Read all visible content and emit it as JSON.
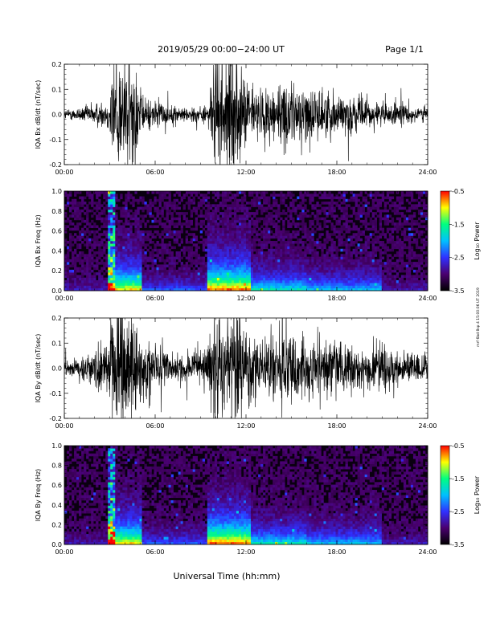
{
  "header": {
    "title": "2019/05/29  00:00−24:00 UT",
    "page_label": "Page 1/1"
  },
  "footer": {
    "xlabel": "Universal Time (hh:mm)",
    "side_note": "mrf 6bd 8sp 4 15:00:06 UT 2019"
  },
  "colors": {
    "trace": "#000000",
    "colormap": [
      "#000000",
      "#4a0070",
      "#3030ff",
      "#00c0ff",
      "#00ff80",
      "#ffff00",
      "#ff0000"
    ]
  },
  "chart_data": [
    {
      "type": "line",
      "name": "bx_waveform",
      "ylabel": "IQA Bx dB/dt (nT/sec)",
      "ylim": [
        -0.2,
        0.2
      ],
      "yticks": [
        "0.2",
        "0.1",
        "0.0",
        "-0.1",
        "-0.2"
      ],
      "xlim": [
        0,
        24
      ],
      "xticks": [
        "00:00",
        "06:00",
        "12:00",
        "18:00",
        "24:00"
      ],
      "envelope": {
        "x": [
          0,
          1,
          2,
          2.9,
          3.1,
          4.0,
          4.6,
          5.2,
          6.0,
          7.0,
          8.0,
          9.5,
          10.0,
          11.0,
          12.0,
          13.0,
          14.0,
          15.0,
          16.0,
          17.0,
          18.0,
          19.0,
          20.0,
          21.0,
          22.0,
          23.0,
          24.0
        ],
        "amp": [
          0.02,
          0.03,
          0.05,
          0.06,
          0.25,
          0.25,
          0.25,
          0.07,
          0.06,
          0.04,
          0.03,
          0.04,
          0.25,
          0.25,
          0.15,
          0.1,
          0.14,
          0.13,
          0.12,
          0.1,
          0.09,
          0.08,
          0.06,
          0.05,
          0.05,
          0.04,
          0.03
        ]
      }
    },
    {
      "type": "heatmap",
      "name": "bx_spectrogram",
      "ylabel": "IQA Bx Freq (Hz)",
      "ylim": [
        0,
        1.0
      ],
      "yticks": [
        "1.0",
        "0.8",
        "0.6",
        "0.4",
        "0.2",
        "0.0"
      ],
      "xlim": [
        0,
        24
      ],
      "xticks": [
        "00:00",
        "06:00",
        "12:00",
        "18:00",
        "24:00"
      ],
      "colorbar": {
        "label": "Log₁₀ Power",
        "ticks": [
          "-0.5",
          "-1.5",
          "-2.5",
          "-3.5"
        ],
        "range": [
          -3.5,
          -0.5
        ]
      }
    },
    {
      "type": "line",
      "name": "by_waveform",
      "ylabel": "IQA By dB/dt (nT/sec)",
      "ylim": [
        -0.2,
        0.2
      ],
      "yticks": [
        "0.2",
        "0.1",
        "0.0",
        "-0.1",
        "-0.2"
      ],
      "xlim": [
        0,
        24
      ],
      "xticks": [
        "00:00",
        "06:00",
        "12:00",
        "18:00",
        "24:00"
      ],
      "envelope": {
        "x": [
          0,
          1,
          2,
          2.9,
          3.1,
          4.0,
          4.6,
          5.2,
          6.0,
          7.0,
          8.0,
          9.5,
          10.0,
          11.0,
          12.0,
          13.0,
          14.0,
          15.0,
          16.0,
          17.0,
          18.0,
          19.0,
          20.0,
          21.0,
          22.0,
          23.0,
          24.0
        ],
        "amp": [
          0.04,
          0.05,
          0.08,
          0.1,
          0.25,
          0.25,
          0.25,
          0.12,
          0.1,
          0.08,
          0.06,
          0.08,
          0.25,
          0.25,
          0.18,
          0.14,
          0.15,
          0.14,
          0.13,
          0.12,
          0.12,
          0.11,
          0.1,
          0.1,
          0.08,
          0.07,
          0.06
        ]
      }
    },
    {
      "type": "heatmap",
      "name": "by_spectrogram",
      "ylabel": "IQA By Freq (Hz)",
      "ylim": [
        0,
        1.0
      ],
      "yticks": [
        "1.0",
        "0.8",
        "0.6",
        "0.4",
        "0.2",
        "0.0"
      ],
      "xlim": [
        0,
        24
      ],
      "xticks": [
        "00:00",
        "06:00",
        "12:00",
        "18:00",
        "24:00"
      ],
      "colorbar": {
        "label": "Log₁₀ Power",
        "ticks": [
          "-0.5",
          "-1.5",
          "-2.5",
          "-3.5"
        ],
        "range": [
          -3.5,
          -0.5
        ]
      }
    }
  ]
}
